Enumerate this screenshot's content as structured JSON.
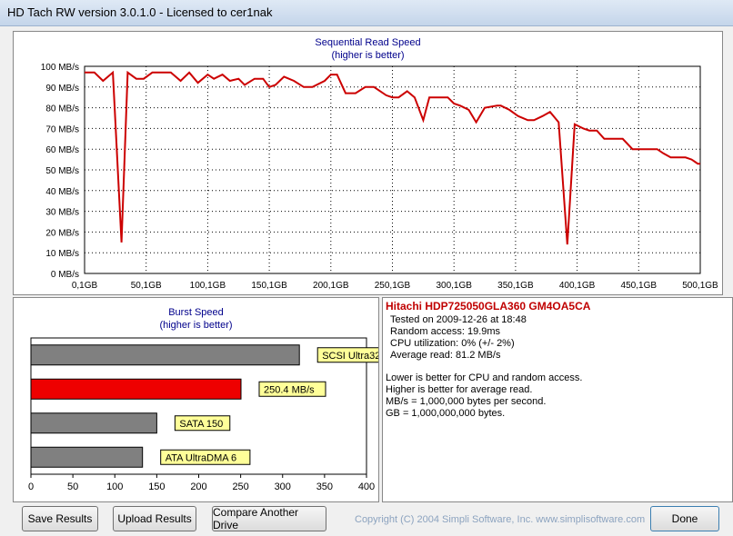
{
  "window": {
    "title": "HD Tach RW version 3.0.1.0 - Licensed to cer1nak"
  },
  "sequential": {
    "title": "Sequential Read Speed",
    "subtitle": "(higher is better)"
  },
  "burst": {
    "title": "Burst Speed",
    "subtitle": "(higher is better)"
  },
  "info": {
    "drive": "Hitachi HDP725050GLA360 GM4OA5CA",
    "tested_on": "Tested on 2009-12-26 at 18:48",
    "random_access": "Random access: 19.9ms",
    "cpu": "CPU utilization: 0% (+/- 2%)",
    "avg_read": "Average read: 81.2 MB/s",
    "note1": "Lower is better for CPU and random access.",
    "note2": "Higher is better for average read.",
    "note3": "MB/s = 1,000,000 bytes per second.",
    "note4": "GB = 1,000,000,000 bytes."
  },
  "buttons": {
    "save": "Save Results",
    "upload": "Upload Results",
    "compare": "Compare Another Drive",
    "done": "Done"
  },
  "copyright": "Copyright (C) 2004 Simpli Software, Inc. www.simplisoftware.com",
  "chart_data": [
    {
      "type": "line",
      "title": "Sequential Read Speed",
      "subtitle": "(higher is better)",
      "color": "#cc0000",
      "xlim": [
        0,
        500
      ],
      "ylim": [
        0,
        100
      ],
      "xticks": [
        0,
        50,
        100,
        150,
        200,
        250,
        300,
        350,
        400,
        450,
        500
      ],
      "xtick_labels": [
        "0,1GB",
        "50,1GB",
        "100,1GB",
        "150,1GB",
        "200,1GB",
        "250,1GB",
        "300,1GB",
        "350,1GB",
        "400,1GB",
        "450,1GB",
        "500,1GB"
      ],
      "yticks": [
        0,
        10,
        20,
        30,
        40,
        50,
        60,
        70,
        80,
        90,
        100
      ],
      "ytick_labels": [
        "0 MB/s",
        "10 MB/s",
        "20 MB/s",
        "30 MB/s",
        "40 MB/s",
        "50 MB/s",
        "60 MB/s",
        "70 MB/s",
        "80 MB/s",
        "90 MB/s",
        "100 MB/s"
      ],
      "grid": true,
      "x": [
        0,
        8,
        15,
        23,
        30,
        35,
        42,
        48,
        55,
        62,
        70,
        78,
        85,
        92,
        100,
        105,
        112,
        118,
        125,
        130,
        138,
        145,
        150,
        155,
        162,
        170,
        178,
        185,
        195,
        200,
        205,
        212,
        220,
        228,
        235,
        245,
        250,
        255,
        262,
        268,
        275,
        280,
        288,
        295,
        300,
        305,
        312,
        318,
        325,
        335,
        338,
        345,
        352,
        360,
        365,
        372,
        378,
        385,
        392,
        398,
        405,
        410,
        416,
        422,
        430,
        437,
        445,
        452,
        458,
        465,
        470,
        476,
        482,
        488,
        493,
        498,
        500
      ],
      "y": [
        97,
        97,
        93,
        97,
        15,
        97,
        94,
        94,
        97,
        97,
        97,
        93,
        97,
        92,
        96,
        94,
        96,
        93,
        94,
        91,
        94,
        94,
        90,
        91,
        95,
        93,
        90,
        90,
        93,
        96,
        96,
        87,
        87,
        90,
        90,
        86,
        85,
        85,
        88,
        85,
        74,
        85,
        85,
        85,
        82,
        81,
        79,
        73,
        80,
        81,
        81,
        79,
        76,
        74,
        74,
        76,
        78,
        73,
        14,
        72,
        70,
        69,
        69,
        65,
        65,
        65,
        60,
        60,
        60,
        60,
        58,
        56,
        56,
        56,
        55,
        53,
        53
      ]
    },
    {
      "type": "bar",
      "orientation": "horizontal",
      "title": "Burst Speed",
      "subtitle": "(higher is better)",
      "xlim": [
        0,
        400
      ],
      "xticks": [
        0,
        50,
        100,
        150,
        200,
        250,
        300,
        350,
        400
      ],
      "categories": [
        "SCSI Ultra320",
        "250.4 MB/s",
        "SATA 150",
        "ATA UltraDMA 6"
      ],
      "values": [
        320,
        250.4,
        150,
        133
      ],
      "colors": [
        "#808080",
        "#ee0000",
        "#808080",
        "#808080"
      ]
    }
  ]
}
